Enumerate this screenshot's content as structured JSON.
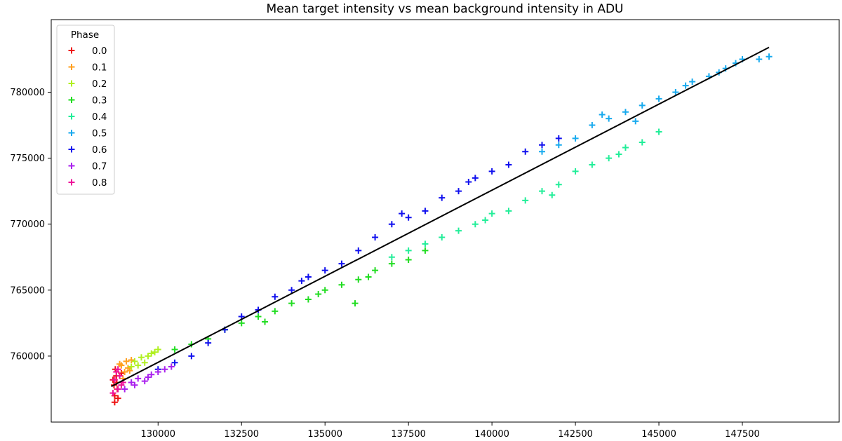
{
  "chart_data": {
    "type": "scatter",
    "title": "Mean target intensity vs mean background intensity in ADU",
    "xlabel": "",
    "ylabel": "",
    "xlim": [
      126800,
      150400
    ],
    "ylim": [
      755000,
      785500
    ],
    "x_ticks": [
      130000,
      132500,
      135000,
      137500,
      140000,
      142500,
      145000,
      147500
    ],
    "y_ticks": [
      760000,
      765000,
      770000,
      775000,
      780000
    ],
    "grid": false,
    "legend": {
      "title": "Phase",
      "placement": "top-left"
    },
    "marker": "+",
    "series": [
      {
        "name": "0.0",
        "color": "#ee1111",
        "points": [
          [
            128700,
            757000
          ],
          [
            128750,
            758500
          ],
          [
            128680,
            757800
          ],
          [
            128800,
            756800
          ],
          [
            128720,
            759000
          ],
          [
            128650,
            758200
          ],
          [
            128780,
            757500
          ],
          [
            128700,
            756500
          ],
          [
            128900,
            758700
          ],
          [
            128760,
            758000
          ]
        ]
      },
      {
        "name": "0.1",
        "color": "#ffa020",
        "points": [
          [
            128900,
            759300
          ],
          [
            129000,
            758800
          ],
          [
            129050,
            759600
          ],
          [
            128950,
            758300
          ],
          [
            129100,
            759100
          ],
          [
            129200,
            759700
          ],
          [
            128850,
            759400
          ],
          [
            129150,
            758900
          ]
        ]
      },
      {
        "name": "0.2",
        "color": "#b0f020",
        "points": [
          [
            129300,
            759600
          ],
          [
            129500,
            759900
          ],
          [
            129700,
            760000
          ],
          [
            129400,
            759300
          ],
          [
            129800,
            760200
          ],
          [
            129600,
            759500
          ],
          [
            129900,
            760300
          ],
          [
            129200,
            759200
          ],
          [
            130000,
            760500
          ]
        ]
      },
      {
        "name": "0.3",
        "color": "#22dd22",
        "points": [
          [
            130500,
            760500
          ],
          [
            131000,
            760900
          ],
          [
            131500,
            761300
          ],
          [
            132000,
            762000
          ],
          [
            132500,
            762500
          ],
          [
            133000,
            763000
          ],
          [
            133500,
            763400
          ],
          [
            134000,
            764000
          ],
          [
            134500,
            764300
          ],
          [
            135000,
            765000
          ],
          [
            135500,
            765400
          ],
          [
            135900,
            764000
          ],
          [
            136000,
            765800
          ],
          [
            136500,
            766500
          ],
          [
            137000,
            767000
          ],
          [
            137500,
            767300
          ],
          [
            138000,
            768000
          ],
          [
            133200,
            762600
          ],
          [
            134800,
            764700
          ],
          [
            136300,
            766000
          ]
        ]
      },
      {
        "name": "0.4",
        "color": "#22ee99",
        "points": [
          [
            137000,
            767500
          ],
          [
            137500,
            768000
          ],
          [
            138000,
            768500
          ],
          [
            138500,
            769000
          ],
          [
            139000,
            769500
          ],
          [
            139500,
            770000
          ],
          [
            140000,
            770800
          ],
          [
            140500,
            771000
          ],
          [
            141000,
            771800
          ],
          [
            141500,
            772500
          ],
          [
            142000,
            773000
          ],
          [
            142500,
            774000
          ],
          [
            143000,
            774500
          ],
          [
            143500,
            775000
          ],
          [
            144000,
            775800
          ],
          [
            144500,
            776200
          ],
          [
            145000,
            777000
          ],
          [
            139800,
            770300
          ],
          [
            141800,
            772200
          ],
          [
            143800,
            775300
          ]
        ]
      },
      {
        "name": "0.5",
        "color": "#18aaee",
        "points": [
          [
            141500,
            775500
          ],
          [
            142000,
            776000
          ],
          [
            142500,
            776500
          ],
          [
            143000,
            777500
          ],
          [
            143500,
            778000
          ],
          [
            144000,
            778500
          ],
          [
            144500,
            779000
          ],
          [
            145000,
            779500
          ],
          [
            145500,
            780000
          ],
          [
            146000,
            780800
          ],
          [
            146500,
            781200
          ],
          [
            147000,
            781800
          ],
          [
            147500,
            782500
          ],
          [
            148000,
            782500
          ],
          [
            148300,
            782700
          ],
          [
            144300,
            777800
          ],
          [
            145800,
            780500
          ],
          [
            146800,
            781500
          ],
          [
            143300,
            778300
          ],
          [
            147300,
            782200
          ]
        ]
      },
      {
        "name": "0.6",
        "color": "#1010ee",
        "points": [
          [
            130000,
            759000
          ],
          [
            130500,
            759500
          ],
          [
            131000,
            760000
          ],
          [
            131500,
            761000
          ],
          [
            132000,
            762000
          ],
          [
            132500,
            763000
          ],
          [
            133000,
            763500
          ],
          [
            133500,
            764500
          ],
          [
            134000,
            765000
          ],
          [
            134500,
            766000
          ],
          [
            135000,
            766500
          ],
          [
            135500,
            767000
          ],
          [
            136000,
            768000
          ],
          [
            136500,
            769000
          ],
          [
            137000,
            770000
          ],
          [
            137500,
            770500
          ],
          [
            138000,
            771000
          ],
          [
            138500,
            772000
          ],
          [
            139000,
            772500
          ],
          [
            139500,
            773500
          ],
          [
            140000,
            774000
          ],
          [
            140500,
            774500
          ],
          [
            141000,
            775500
          ],
          [
            141500,
            776000
          ],
          [
            142000,
            776500
          ],
          [
            137300,
            770800
          ],
          [
            139300,
            773200
          ],
          [
            134300,
            765700
          ]
        ]
      },
      {
        "name": "0.7",
        "color": "#aa22ee",
        "points": [
          [
            129000,
            757500
          ],
          [
            129200,
            758000
          ],
          [
            129400,
            758300
          ],
          [
            129600,
            758100
          ],
          [
            129800,
            758600
          ],
          [
            130000,
            758800
          ],
          [
            130200,
            759000
          ],
          [
            129300,
            757800
          ],
          [
            129700,
            758400
          ],
          [
            130400,
            759200
          ]
        ]
      },
      {
        "name": "0.8",
        "color": "#ee1199",
        "points": [
          [
            128700,
            758200
          ],
          [
            128800,
            757500
          ],
          [
            128750,
            758800
          ],
          [
            128900,
            757800
          ],
          [
            128850,
            758500
          ],
          [
            128650,
            757200
          ],
          [
            128950,
            758000
          ],
          [
            128800,
            759000
          ]
        ]
      }
    ],
    "fit_line": {
      "color": "#000000",
      "points": [
        [
          128600,
          757700
        ],
        [
          148300,
          783400
        ]
      ]
    }
  }
}
